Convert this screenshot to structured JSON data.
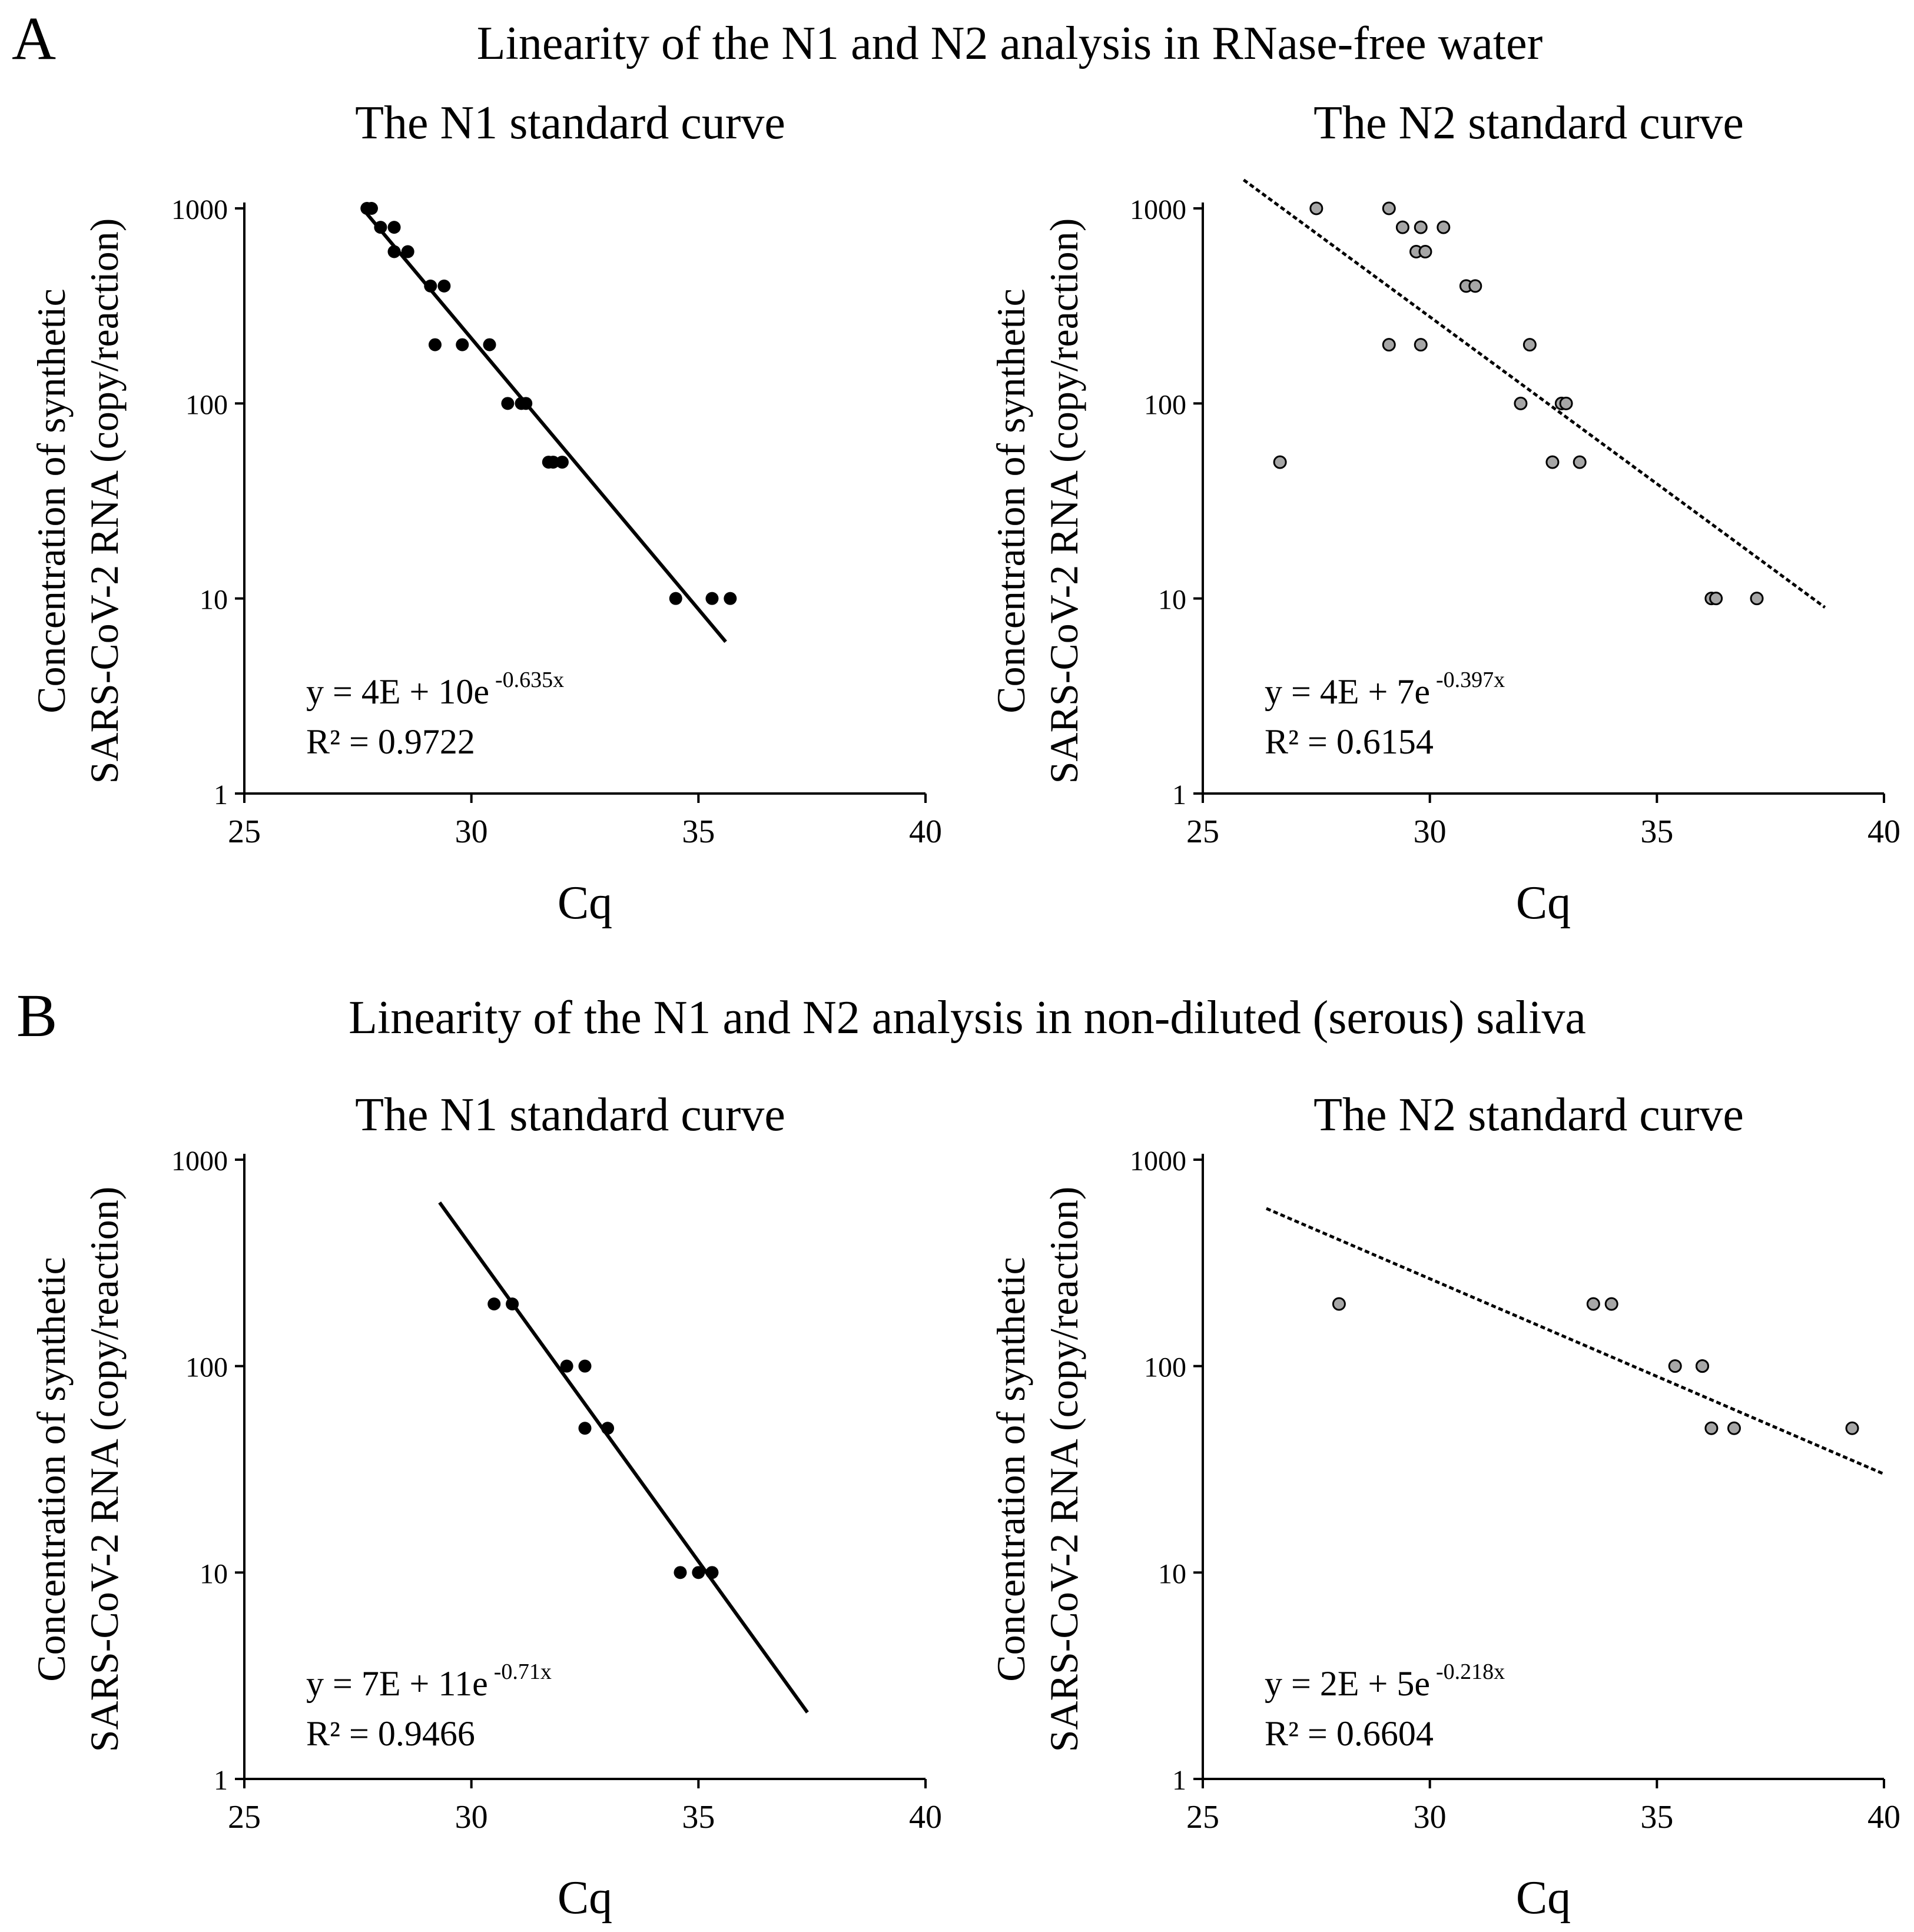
{
  "figure": {
    "panel_a_label": "A",
    "panel_b_label": "B",
    "panel_a_title": "Linearity of the N1 and N2 analysis in RNase-free water",
    "panel_b_title": "Linearity of the N1 and N2 analysis in non-diluted (serous) saliva"
  },
  "colors": {
    "n1_marker": "#000000",
    "n2_marker": "#a6a6a6",
    "axis": "#000000",
    "line": "#000000"
  },
  "chart_data": [
    {
      "id": "a-n1",
      "type": "scatter",
      "title": "The N1 standard curve",
      "xlabel": "Cq",
      "ylabel_lines": [
        "Concentration of synthetic",
        "SARS-CoV-2 RNA (copy/reaction)"
      ],
      "xlim": [
        25,
        40
      ],
      "xticks": [
        "25",
        "30",
        "35",
        "40"
      ],
      "ylim": [
        1,
        1000
      ],
      "yscale": "log",
      "yticks": [
        "1",
        "10",
        "100",
        "1000"
      ],
      "marker": "filled",
      "equation_lead": "y = 4E + 10e",
      "equation_exp": "-0.635x",
      "r2_label": "R² = 0.9722",
      "trendline": {
        "style": "solid",
        "x": [
          27.6,
          35.6
        ],
        "y": [
          1000,
          6
        ]
      },
      "points": [
        {
          "x": 27.7,
          "y": 1000
        },
        {
          "x": 27.8,
          "y": 1000
        },
        {
          "x": 28.0,
          "y": 800
        },
        {
          "x": 28.3,
          "y": 800
        },
        {
          "x": 28.3,
          "y": 600
        },
        {
          "x": 28.6,
          "y": 600
        },
        {
          "x": 29.1,
          "y": 400
        },
        {
          "x": 29.4,
          "y": 400
        },
        {
          "x": 29.2,
          "y": 200
        },
        {
          "x": 29.8,
          "y": 200
        },
        {
          "x": 30.4,
          "y": 200
        },
        {
          "x": 30.8,
          "y": 100
        },
        {
          "x": 31.1,
          "y": 100
        },
        {
          "x": 31.2,
          "y": 100
        },
        {
          "x": 31.7,
          "y": 50
        },
        {
          "x": 31.8,
          "y": 50
        },
        {
          "x": 32.0,
          "y": 50
        },
        {
          "x": 34.5,
          "y": 10
        },
        {
          "x": 35.3,
          "y": 10
        },
        {
          "x": 35.7,
          "y": 10
        }
      ]
    },
    {
      "id": "a-n2",
      "type": "scatter",
      "title": "The N2 standard curve",
      "xlabel": "Cq",
      "ylabel_lines": [
        "Concentration of synthetic",
        "SARS-CoV-2 RNA (copy/reaction)"
      ],
      "xlim": [
        25,
        40
      ],
      "xticks": [
        "25",
        "30",
        "35",
        "40"
      ],
      "ylim": [
        1,
        1000
      ],
      "yscale": "log",
      "yticks": [
        "1",
        "10",
        "100",
        "1000"
      ],
      "marker": "open",
      "equation_lead": "y = 4E + 7e",
      "equation_exp": "-0.397x",
      "r2_label": "R² = 0.6154",
      "trendline": {
        "style": "dotted",
        "x": [
          25.9,
          38.7
        ],
        "y": [
          1400,
          9
        ]
      },
      "points": [
        {
          "x": 26.7,
          "y": 50
        },
        {
          "x": 27.5,
          "y": 1000
        },
        {
          "x": 29.1,
          "y": 1000
        },
        {
          "x": 29.1,
          "y": 200
        },
        {
          "x": 29.4,
          "y": 800
        },
        {
          "x": 29.8,
          "y": 800
        },
        {
          "x": 30.3,
          "y": 800
        },
        {
          "x": 29.7,
          "y": 600
        },
        {
          "x": 29.9,
          "y": 600
        },
        {
          "x": 29.8,
          "y": 200
        },
        {
          "x": 30.8,
          "y": 400
        },
        {
          "x": 31.0,
          "y": 400
        },
        {
          "x": 32.0,
          "y": 100
        },
        {
          "x": 32.2,
          "y": 200
        },
        {
          "x": 32.9,
          "y": 100
        },
        {
          "x": 33.0,
          "y": 100
        },
        {
          "x": 32.7,
          "y": 50
        },
        {
          "x": 33.3,
          "y": 50
        },
        {
          "x": 36.2,
          "y": 10
        },
        {
          "x": 36.3,
          "y": 10
        },
        {
          "x": 37.2,
          "y": 10
        }
      ]
    },
    {
      "id": "b-n1",
      "type": "scatter",
      "title": "The N1 standard curve",
      "xlabel": "Cq",
      "ylabel_lines": [
        "Concentration of synthetic",
        "SARS-CoV-2 RNA (copy/reaction)"
      ],
      "xlim": [
        25,
        40
      ],
      "xticks": [
        "25",
        "30",
        "35",
        "40"
      ],
      "ylim": [
        1,
        1000
      ],
      "yscale": "log",
      "yticks": [
        "1",
        "10",
        "100",
        "1000"
      ],
      "marker": "filled",
      "equation_lead": "y = 7E + 11e",
      "equation_exp": "-0.71x",
      "r2_label": "R² = 0.9466",
      "trendline": {
        "style": "solid",
        "x": [
          29.3,
          37.4
        ],
        "y": [
          620,
          2.1
        ]
      },
      "points": [
        {
          "x": 30.5,
          "y": 200
        },
        {
          "x": 30.9,
          "y": 200
        },
        {
          "x": 32.1,
          "y": 100
        },
        {
          "x": 32.5,
          "y": 100
        },
        {
          "x": 32.5,
          "y": 50
        },
        {
          "x": 33.0,
          "y": 50
        },
        {
          "x": 34.6,
          "y": 10
        },
        {
          "x": 35.0,
          "y": 10
        },
        {
          "x": 35.3,
          "y": 10
        }
      ]
    },
    {
      "id": "b-n2",
      "type": "scatter",
      "title": "The N2 standard curve",
      "xlabel": "Cq",
      "ylabel_lines": [
        "Concentration of synthetic",
        "SARS-CoV-2 RNA (copy/reaction)"
      ],
      "xlim": [
        25,
        40
      ],
      "xticks": [
        "25",
        "30",
        "35",
        "40"
      ],
      "ylim": [
        1,
        1000
      ],
      "yscale": "log",
      "yticks": [
        "1",
        "10",
        "100",
        "1000"
      ],
      "marker": "open",
      "equation_lead": "y = 2E + 5e",
      "equation_exp": "-0.218x",
      "r2_label": "R² = 0.6604",
      "trendline": {
        "style": "dotted",
        "x": [
          26.4,
          40.0
        ],
        "y": [
          580,
          30
        ]
      },
      "points": [
        {
          "x": 28.0,
          "y": 200
        },
        {
          "x": 33.6,
          "y": 200
        },
        {
          "x": 34.0,
          "y": 200
        },
        {
          "x": 35.4,
          "y": 100
        },
        {
          "x": 36.0,
          "y": 100
        },
        {
          "x": 36.0,
          "y": 100
        },
        {
          "x": 36.2,
          "y": 50
        },
        {
          "x": 36.7,
          "y": 50
        },
        {
          "x": 39.3,
          "y": 50
        }
      ]
    }
  ]
}
